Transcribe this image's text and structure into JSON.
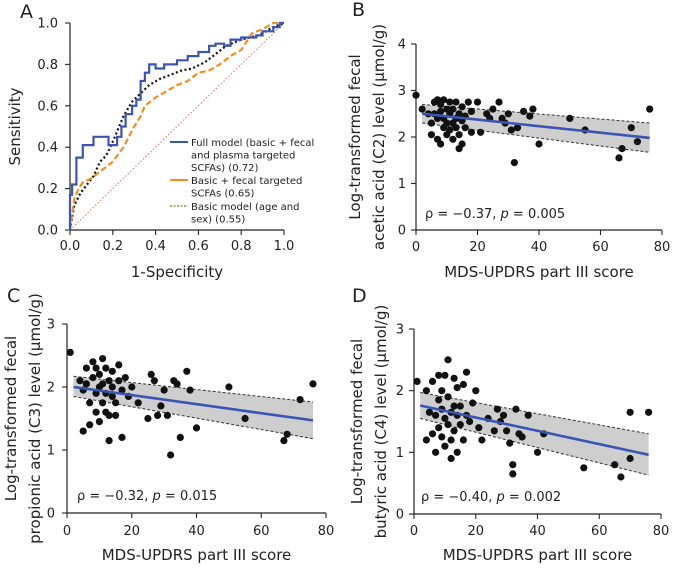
{
  "chart_data": [
    {
      "panel": "A",
      "type": "line",
      "title": "",
      "xlabel": "1-Specificity",
      "ylabel": "Sensitivity",
      "xlim": [
        0,
        1
      ],
      "ylim": [
        0,
        1
      ],
      "xticks": [
        "0.0",
        "0.2",
        "0.4",
        "0.6",
        "0.8",
        "1.0"
      ],
      "yticks": [
        "0.0",
        "0.2",
        "0.4",
        "0.6",
        "0.8",
        "1.0"
      ],
      "reference_line": {
        "x": [
          0,
          1
        ],
        "y": [
          0,
          1
        ],
        "color": "#e07060"
      },
      "series": [
        {
          "name": "Full model (basic + fecal and plasma targeted SCFAs) (0.72)",
          "legend_lines": [
            "Full model (basic + fecal",
            "and plasma targeted",
            "SCFAs) (0.72)"
          ],
          "color": "#3a55b4",
          "style": "solid",
          "x": [
            0,
            0,
            0.01,
            0.01,
            0.03,
            0.03,
            0.06,
            0.06,
            0.11,
            0.11,
            0.18,
            0.18,
            0.22,
            0.22,
            0.24,
            0.24,
            0.26,
            0.26,
            0.29,
            0.29,
            0.31,
            0.31,
            0.33,
            0.33,
            0.35,
            0.35,
            0.37,
            0.37,
            0.4,
            0.4,
            0.44,
            0.44,
            0.5,
            0.5,
            0.55,
            0.55,
            0.6,
            0.6,
            0.65,
            0.65,
            0.68,
            0.68,
            0.72,
            0.72,
            0.75,
            0.75,
            0.8,
            0.8,
            0.87,
            0.87,
            0.9,
            0.9,
            0.95,
            0.95,
            0.98,
            0.98,
            1.0
          ],
          "y": [
            0,
            0.17,
            0.17,
            0.22,
            0.22,
            0.35,
            0.35,
            0.41,
            0.41,
            0.45,
            0.45,
            0.41,
            0.41,
            0.45,
            0.45,
            0.5,
            0.5,
            0.56,
            0.56,
            0.6,
            0.6,
            0.63,
            0.63,
            0.72,
            0.72,
            0.76,
            0.76,
            0.8,
            0.8,
            0.78,
            0.78,
            0.8,
            0.8,
            0.82,
            0.82,
            0.84,
            0.84,
            0.86,
            0.86,
            0.89,
            0.89,
            0.9,
            0.9,
            0.89,
            0.89,
            0.92,
            0.92,
            0.93,
            0.93,
            0.94,
            0.94,
            0.96,
            0.96,
            0.98,
            0.98,
            1.0,
            1.0
          ]
        },
        {
          "name": "Basic + fecal targeted SCFAs (0.65)",
          "legend_lines": [
            "Basic + fecal targeted",
            "SCFAs (0.65)"
          ],
          "color": "#f0901e",
          "style": "dashed",
          "x": [
            0,
            0.02,
            0.04,
            0.06,
            0.1,
            0.15,
            0.2,
            0.25,
            0.3,
            0.33,
            0.35,
            0.4,
            0.45,
            0.5,
            0.55,
            0.6,
            0.65,
            0.7,
            0.75,
            0.8,
            0.85,
            0.9,
            0.95,
            1.0
          ],
          "y": [
            0,
            0.15,
            0.2,
            0.23,
            0.25,
            0.29,
            0.33,
            0.4,
            0.5,
            0.55,
            0.6,
            0.64,
            0.67,
            0.7,
            0.72,
            0.76,
            0.77,
            0.8,
            0.84,
            0.87,
            0.95,
            0.97,
            1.0,
            1.0
          ]
        },
        {
          "name": "Basic model (age and sex) (0.55)",
          "legend_lines": [
            "Basic model (age and",
            "sex) (0.55)"
          ],
          "color": "#8a8f38",
          "style": "dotted",
          "x": [
            0,
            0.02,
            0.05,
            0.08,
            0.11,
            0.14,
            0.17,
            0.21,
            0.25,
            0.29,
            0.33,
            0.37,
            0.42,
            0.47,
            0.52,
            0.57,
            0.63,
            0.68,
            0.73,
            0.8,
            0.88,
            0.95,
            1.0
          ],
          "y": [
            0,
            0.12,
            0.18,
            0.22,
            0.26,
            0.33,
            0.36,
            0.45,
            0.55,
            0.62,
            0.66,
            0.7,
            0.73,
            0.75,
            0.77,
            0.78,
            0.81,
            0.85,
            0.89,
            0.92,
            0.94,
            0.98,
            1.0
          ]
        }
      ]
    },
    {
      "panel": "B",
      "type": "scatter",
      "xlabel": "MDS-UPDRS part III score",
      "ylabel_lines": [
        "Log-transformed fecal",
        "acetic acid (C2) level (µmol/g)"
      ],
      "xlim": [
        0,
        80
      ],
      "ylim": [
        0,
        4
      ],
      "xticks": [
        "0",
        "20",
        "40",
        "60",
        "80"
      ],
      "yticks": [
        "0",
        "1",
        "2",
        "3",
        "4"
      ],
      "annotation": {
        "text": "ρ = −0.37, ",
        "p_label": "p",
        "p_value": " = 0.005"
      },
      "fit": {
        "x": [
          2,
          76
        ],
        "y": [
          2.5,
          1.98
        ],
        "ci_lower": [
          2.3,
          1.67
        ],
        "ci_upper": [
          2.7,
          2.3
        ]
      },
      "points": [
        [
          0,
          2.9
        ],
        [
          2,
          2.6
        ],
        [
          4,
          2.5
        ],
        [
          5,
          2.3
        ],
        [
          5,
          2.05
        ],
        [
          6,
          2.75
        ],
        [
          6,
          2.5
        ],
        [
          7,
          1.95
        ],
        [
          7,
          2.8
        ],
        [
          7,
          2.4
        ],
        [
          8,
          1.85
        ],
        [
          8,
          2.55
        ],
        [
          8,
          2.7
        ],
        [
          9,
          2.2
        ],
        [
          9,
          2.4
        ],
        [
          9,
          2.8
        ],
        [
          10,
          2.6
        ],
        [
          10,
          2.3
        ],
        [
          10,
          2.05
        ],
        [
          11,
          2.75
        ],
        [
          11,
          2.5
        ],
        [
          11,
          2.15
        ],
        [
          12,
          2.3
        ],
        [
          12,
          2.6
        ],
        [
          12,
          1.95
        ],
        [
          13,
          2.4
        ],
        [
          13,
          2.75
        ],
        [
          13,
          2.2
        ],
        [
          14,
          1.75
        ],
        [
          14,
          2.5
        ],
        [
          14,
          2.05
        ],
        [
          15,
          2.35
        ],
        [
          15,
          2.65
        ],
        [
          15,
          1.85
        ],
        [
          16,
          2.45
        ],
        [
          16,
          2.2
        ],
        [
          17,
          2.75
        ],
        [
          18,
          2.1
        ],
        [
          18,
          2.55
        ],
        [
          20,
          2.75
        ],
        [
          21,
          2.1
        ],
        [
          23,
          2.5
        ],
        [
          24,
          2.4
        ],
        [
          25,
          2.6
        ],
        [
          27,
          2.75
        ],
        [
          28,
          2.4
        ],
        [
          29,
          2.3
        ],
        [
          30,
          2.5
        ],
        [
          31,
          2.15
        ],
        [
          32,
          1.45
        ],
        [
          33,
          2.2
        ],
        [
          35,
          2.55
        ],
        [
          37,
          2.45
        ],
        [
          38,
          2.6
        ],
        [
          40,
          1.85
        ],
        [
          50,
          2.4
        ],
        [
          55,
          2.15
        ],
        [
          66,
          1.55
        ],
        [
          67,
          1.75
        ],
        [
          70,
          2.2
        ],
        [
          72,
          1.9
        ],
        [
          76,
          2.6
        ]
      ]
    },
    {
      "panel": "C",
      "type": "scatter",
      "xlabel": "MDS-UPDRS part III score",
      "ylabel_lines": [
        "Log-transformed fecal",
        "propionic  acid (C3) level (µmol/g)"
      ],
      "xlim": [
        0,
        80
      ],
      "ylim": [
        0,
        3
      ],
      "xticks": [
        "0",
        "20",
        "40",
        "60",
        "80"
      ],
      "yticks": [
        "0",
        "1",
        "2",
        "3"
      ],
      "annotation": {
        "text": "ρ = −0.32, ",
        "p_label": "p",
        "p_value": " = 0.015"
      },
      "fit": {
        "x": [
          2,
          76
        ],
        "y": [
          2.0,
          1.47
        ],
        "ci_lower": [
          1.85,
          1.18
        ],
        "ci_upper": [
          2.17,
          1.76
        ]
      },
      "points": [
        [
          1,
          2.55
        ],
        [
          4,
          2.1
        ],
        [
          5,
          1.95
        ],
        [
          5,
          1.3
        ],
        [
          6,
          2.3
        ],
        [
          6,
          2.05
        ],
        [
          7,
          1.4
        ],
        [
          7,
          1.75
        ],
        [
          8,
          2.4
        ],
        [
          8,
          2.15
        ],
        [
          9,
          1.9
        ],
        [
          9,
          1.6
        ],
        [
          9,
          2.3
        ],
        [
          10,
          2.0
        ],
        [
          10,
          1.45
        ],
        [
          10,
          2.2
        ],
        [
          11,
          1.75
        ],
        [
          11,
          2.45
        ],
        [
          11,
          2.05
        ],
        [
          12,
          1.9
        ],
        [
          12,
          1.6
        ],
        [
          12,
          2.3
        ],
        [
          13,
          2.1
        ],
        [
          13,
          1.55
        ],
        [
          13,
          1.15
        ],
        [
          14,
          2.0
        ],
        [
          14,
          2.25
        ],
        [
          14,
          1.85
        ],
        [
          15,
          1.75
        ],
        [
          15,
          1.55
        ],
        [
          16,
          2.35
        ],
        [
          16,
          2.1
        ],
        [
          17,
          1.95
        ],
        [
          17,
          1.2
        ],
        [
          18,
          2.15
        ],
        [
          19,
          1.85
        ],
        [
          20,
          2.0
        ],
        [
          22,
          1.75
        ],
        [
          25,
          1.5
        ],
        [
          26,
          2.2
        ],
        [
          27,
          2.1
        ],
        [
          28,
          1.55
        ],
        [
          29,
          1.7
        ],
        [
          30,
          1.95
        ],
        [
          31,
          1.55
        ],
        [
          32,
          0.92
        ],
        [
          33,
          2.1
        ],
        [
          34,
          2.05
        ],
        [
          35,
          1.2
        ],
        [
          37,
          2.25
        ],
        [
          38,
          1.95
        ],
        [
          40,
          1.35
        ],
        [
          50,
          2.0
        ],
        [
          55,
          1.5
        ],
        [
          67,
          1.15
        ],
        [
          68,
          1.25
        ],
        [
          72,
          1.8
        ],
        [
          76,
          2.05
        ]
      ]
    },
    {
      "panel": "D",
      "type": "scatter",
      "xlabel": "MDS-UPDRS part III score",
      "ylabel_lines": [
        "Log-transformed fecal",
        "butyric  acid (C4) level (µmol/g)"
      ],
      "xlim": [
        0,
        80
      ],
      "ylim": [
        0,
        3
      ],
      "xticks": [
        "0",
        "20",
        "40",
        "60",
        "80"
      ],
      "yticks": [
        "0",
        "1",
        "2",
        "3"
      ],
      "annotation": {
        "text": "ρ = −0.40, ",
        "p_label": "p",
        "p_value": " = 0.002"
      },
      "fit": {
        "x": [
          2,
          76
        ],
        "y": [
          1.76,
          0.96
        ],
        "ci_lower": [
          1.55,
          0.63
        ],
        "ci_upper": [
          1.97,
          1.3
        ]
      },
      "points": [
        [
          1,
          2.15
        ],
        [
          4,
          2.0
        ],
        [
          4,
          1.2
        ],
        [
          5,
          1.65
        ],
        [
          6,
          1.3
        ],
        [
          6,
          2.15
        ],
        [
          7,
          1.6
        ],
        [
          7,
          1.0
        ],
        [
          8,
          2.25
        ],
        [
          8,
          1.85
        ],
        [
          8,
          1.4
        ],
        [
          9,
          1.25
        ],
        [
          9,
          2.0
        ],
        [
          9,
          1.7
        ],
        [
          10,
          1.55
        ],
        [
          10,
          2.25
        ],
        [
          10,
          1.1
        ],
        [
          11,
          1.9
        ],
        [
          11,
          1.45
        ],
        [
          11,
          2.5
        ],
        [
          12,
          1.65
        ],
        [
          12,
          1.2
        ],
        [
          12,
          0.9
        ],
        [
          13,
          2.2
        ],
        [
          13,
          1.75
        ],
        [
          13,
          1.35
        ],
        [
          14,
          1.6
        ],
        [
          14,
          2.05
        ],
        [
          14,
          1.0
        ],
        [
          15,
          1.75
        ],
        [
          15,
          1.45
        ],
        [
          16,
          2.1
        ],
        [
          16,
          1.2
        ],
        [
          17,
          1.6
        ],
        [
          17,
          2.3
        ],
        [
          18,
          1.5
        ],
        [
          19,
          1.8
        ],
        [
          20,
          2.0
        ],
        [
          21,
          1.4
        ],
        [
          22,
          1.2
        ],
        [
          24,
          1.55
        ],
        [
          26,
          1.35
        ],
        [
          27,
          1.7
        ],
        [
          28,
          1.5
        ],
        [
          29,
          1.6
        ],
        [
          30,
          1.35
        ],
        [
          31,
          1.15
        ],
        [
          32,
          0.65
        ],
        [
          32,
          0.8
        ],
        [
          33,
          1.7
        ],
        [
          34,
          1.3
        ],
        [
          35,
          1.25
        ],
        [
          37,
          1.6
        ],
        [
          40,
          1.0
        ],
        [
          42,
          1.3
        ],
        [
          55,
          0.75
        ],
        [
          65,
          0.8
        ],
        [
          67,
          0.6
        ],
        [
          70,
          1.65
        ],
        [
          70,
          0.9
        ],
        [
          76,
          1.65
        ]
      ]
    }
  ]
}
